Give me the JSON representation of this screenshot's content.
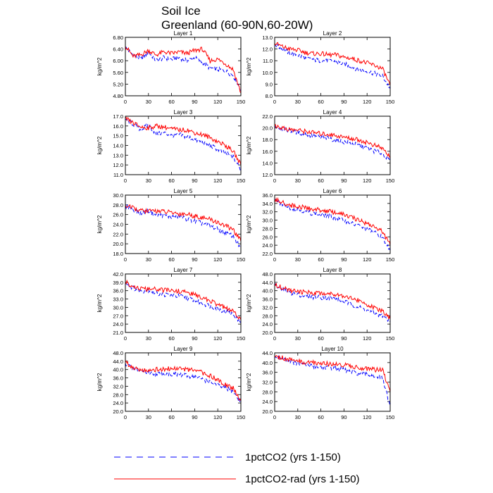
{
  "title": "Soil Ice",
  "subtitle": "Greenland (60-90N,60-20W)",
  "legend": [
    {
      "label": "1pctCO2 (yrs 1-150)",
      "color": "#0000ff",
      "dash": true
    },
    {
      "label": "1pctCO2-rad (yrs 1-150)",
      "color": "#ff0000",
      "dash": false
    }
  ],
  "chart_data": [
    {
      "type": "line",
      "title": "Layer 1",
      "ylabel": "kg/m^2",
      "xlim": [
        0,
        150
      ],
      "ylim": [
        4.8,
        6.8
      ],
      "yticks": [
        "4.80",
        "5.20",
        "5.60",
        "6.00",
        "6.40",
        "6.80"
      ],
      "xticks": [
        "0",
        "30",
        "60",
        "90",
        "120",
        "150"
      ],
      "x": [
        0,
        10,
        20,
        30,
        40,
        50,
        60,
        70,
        80,
        90,
        100,
        110,
        120,
        130,
        140,
        150
      ],
      "series": [
        {
          "name": "1pctCO2 (yrs 1-150)",
          "values": [
            6.45,
            6.2,
            6.05,
            6.3,
            6.0,
            6.1,
            6.05,
            6.1,
            6.0,
            6.1,
            5.95,
            5.75,
            5.7,
            5.65,
            5.5,
            5.0
          ]
        },
        {
          "name": "1pctCO2-rad (yrs 1-150)",
          "values": [
            6.5,
            6.15,
            6.2,
            6.35,
            6.2,
            6.3,
            6.25,
            6.3,
            6.25,
            6.35,
            6.4,
            6.0,
            6.05,
            5.9,
            5.7,
            4.9
          ]
        }
      ]
    },
    {
      "type": "line",
      "title": "Layer 2",
      "ylabel": "kg/m^2",
      "xlim": [
        0,
        150
      ],
      "ylim": [
        8.0,
        13.0
      ],
      "yticks": [
        "8.0",
        "9.0",
        "10.0",
        "11.0",
        "12.0",
        "13.0"
      ],
      "xticks": [
        "0",
        "30",
        "60",
        "90",
        "120",
        "150"
      ],
      "x": [
        0,
        10,
        20,
        30,
        40,
        50,
        60,
        70,
        80,
        90,
        100,
        110,
        120,
        130,
        140,
        150
      ],
      "series": [
        {
          "name": "1pctCO2 (yrs 1-150)",
          "values": [
            12.4,
            12.0,
            11.6,
            11.5,
            11.2,
            11.1,
            11.0,
            11.0,
            10.9,
            10.7,
            10.5,
            10.2,
            10.1,
            9.9,
            9.7,
            8.6
          ]
        },
        {
          "name": "1pctCO2-rad (yrs 1-150)",
          "values": [
            12.5,
            12.2,
            12.0,
            11.9,
            11.7,
            11.6,
            11.6,
            11.5,
            11.5,
            11.3,
            11.2,
            11.0,
            10.8,
            10.6,
            10.3,
            8.9
          ]
        }
      ]
    },
    {
      "type": "line",
      "title": "Layer 3",
      "ylabel": "kg/m^2",
      "xlim": [
        0,
        150
      ],
      "ylim": [
        11.0,
        17.0
      ],
      "yticks": [
        "11.0",
        "12.0",
        "13.0",
        "14.0",
        "15.0",
        "16.0",
        "17.0"
      ],
      "xticks": [
        "0",
        "30",
        "60",
        "90",
        "120",
        "150"
      ],
      "x": [
        0,
        10,
        20,
        30,
        40,
        50,
        60,
        70,
        80,
        90,
        100,
        110,
        120,
        130,
        140,
        150
      ],
      "series": [
        {
          "name": "1pctCO2 (yrs 1-150)",
          "values": [
            16.7,
            16.2,
            15.6,
            16.1,
            15.2,
            15.3,
            15.0,
            15.1,
            14.9,
            14.6,
            14.3,
            14.0,
            13.6,
            13.2,
            12.8,
            11.5
          ]
        },
        {
          "name": "1pctCO2-rad (yrs 1-150)",
          "values": [
            16.8,
            16.3,
            15.9,
            15.8,
            16.0,
            15.9,
            15.7,
            15.6,
            15.6,
            15.3,
            15.1,
            14.8,
            14.4,
            14.0,
            13.4,
            12.0
          ]
        }
      ]
    },
    {
      "type": "line",
      "title": "Layer 4",
      "ylabel": "kg/m^2",
      "xlim": [
        0,
        150
      ],
      "ylim": [
        12.0,
        22.0
      ],
      "yticks": [
        "12.0",
        "14.0",
        "16.0",
        "18.0",
        "20.0",
        "22.0"
      ],
      "xticks": [
        "0",
        "30",
        "60",
        "90",
        "120",
        "150"
      ],
      "x": [
        0,
        10,
        20,
        30,
        40,
        50,
        60,
        70,
        80,
        90,
        100,
        110,
        120,
        130,
        140,
        150
      ],
      "series": [
        {
          "name": "1pctCO2 (yrs 1-150)",
          "values": [
            20.3,
            19.8,
            19.5,
            19.2,
            18.9,
            18.6,
            18.4,
            18.2,
            17.9,
            17.6,
            17.3,
            17.0,
            16.5,
            16.0,
            15.6,
            14.3
          ]
        },
        {
          "name": "1pctCO2-rad (yrs 1-150)",
          "values": [
            20.4,
            20.0,
            19.7,
            19.6,
            19.4,
            19.2,
            19.0,
            18.9,
            18.7,
            18.4,
            18.2,
            17.9,
            17.5,
            17.0,
            16.5,
            15.0
          ]
        }
      ]
    },
    {
      "type": "line",
      "title": "Layer 5",
      "ylabel": "kg/m^2",
      "xlim": [
        0,
        150
      ],
      "ylim": [
        18.0,
        30.0
      ],
      "yticks": [
        "18.0",
        "20.0",
        "22.0",
        "24.0",
        "26.0",
        "28.0",
        "30.0"
      ],
      "xticks": [
        "0",
        "30",
        "60",
        "90",
        "120",
        "150"
      ],
      "x": [
        0,
        10,
        20,
        30,
        40,
        50,
        60,
        70,
        80,
        90,
        100,
        110,
        120,
        130,
        140,
        150
      ],
      "series": [
        {
          "name": "1pctCO2 (yrs 1-150)",
          "values": [
            27.8,
            27.0,
            26.3,
            26.8,
            25.8,
            25.9,
            25.5,
            25.6,
            25.1,
            24.6,
            24.2,
            23.7,
            23.0,
            22.3,
            21.6,
            19.0
          ]
        },
        {
          "name": "1pctCO2-rad (yrs 1-150)",
          "values": [
            27.9,
            27.3,
            26.8,
            26.7,
            26.8,
            26.6,
            26.4,
            26.2,
            26.1,
            25.7,
            25.4,
            25.0,
            24.4,
            23.7,
            22.9,
            20.5
          ]
        }
      ]
    },
    {
      "type": "line",
      "title": "Layer 6",
      "ylabel": "kg/m^2",
      "xlim": [
        0,
        150
      ],
      "ylim": [
        22.0,
        36.0
      ],
      "yticks": [
        "22.0",
        "24.0",
        "26.0",
        "28.0",
        "30.0",
        "32.0",
        "34.0",
        "36.0"
      ],
      "xticks": [
        "0",
        "30",
        "60",
        "90",
        "120",
        "150"
      ],
      "x": [
        0,
        10,
        20,
        30,
        40,
        50,
        60,
        70,
        80,
        90,
        100,
        110,
        120,
        130,
        140,
        150
      ],
      "series": [
        {
          "name": "1pctCO2 (yrs 1-150)",
          "values": [
            34.8,
            33.8,
            33.0,
            32.6,
            32.0,
            31.6,
            31.3,
            31.0,
            30.5,
            30.0,
            29.2,
            28.6,
            27.8,
            27.0,
            25.8,
            22.8
          ]
        },
        {
          "name": "1pctCO2-rad (yrs 1-150)",
          "values": [
            35.0,
            34.2,
            33.6,
            33.2,
            33.0,
            32.6,
            32.4,
            32.1,
            31.8,
            31.3,
            30.6,
            30.0,
            29.2,
            28.4,
            27.2,
            24.0
          ]
        }
      ]
    },
    {
      "type": "line",
      "title": "Layer 7",
      "ylabel": "kg/m^2",
      "xlim": [
        0,
        150
      ],
      "ylim": [
        21.0,
        42.0
      ],
      "yticks": [
        "21.0",
        "24.0",
        "27.0",
        "30.0",
        "33.0",
        "36.0",
        "39.0",
        "42.0"
      ],
      "xticks": [
        "0",
        "30",
        "60",
        "90",
        "120",
        "150"
      ],
      "x": [
        0,
        10,
        20,
        30,
        40,
        50,
        60,
        70,
        80,
        90,
        100,
        110,
        120,
        130,
        140,
        150
      ],
      "series": [
        {
          "name": "1pctCO2 (yrs 1-150)",
          "values": [
            38.8,
            37.0,
            35.8,
            36.2,
            35.0,
            34.6,
            34.3,
            34.0,
            33.5,
            32.5,
            31.5,
            30.5,
            29.5,
            28.5,
            27.5,
            24.5
          ]
        },
        {
          "name": "1pctCO2-rad (yrs 1-150)",
          "values": [
            39.2,
            37.6,
            36.6,
            36.5,
            36.5,
            36.2,
            36.0,
            35.8,
            35.4,
            34.5,
            33.5,
            32.3,
            31.0,
            29.8,
            28.5,
            25.5
          ]
        }
      ]
    },
    {
      "type": "line",
      "title": "Layer 8",
      "ylabel": "kg/m^2",
      "xlim": [
        0,
        150
      ],
      "ylim": [
        20.0,
        48.0
      ],
      "yticks": [
        "20.0",
        "24.0",
        "28.0",
        "32.0",
        "36.0",
        "40.0",
        "44.0",
        "48.0"
      ],
      "xticks": [
        "0",
        "30",
        "60",
        "90",
        "120",
        "150"
      ],
      "x": [
        0,
        10,
        20,
        30,
        40,
        50,
        60,
        70,
        80,
        90,
        100,
        110,
        120,
        130,
        140,
        150
      ],
      "series": [
        {
          "name": "1pctCO2 (yrs 1-150)",
          "values": [
            42.5,
            40.5,
            39.0,
            38.2,
            37.5,
            37.0,
            36.8,
            36.5,
            36.0,
            34.8,
            33.5,
            32.0,
            30.5,
            29.0,
            28.0,
            25.0
          ]
        },
        {
          "name": "1pctCO2-rad (yrs 1-150)",
          "values": [
            43.0,
            41.5,
            40.0,
            39.5,
            39.2,
            39.0,
            38.8,
            38.6,
            38.4,
            37.5,
            36.5,
            35.0,
            33.5,
            31.5,
            30.0,
            26.5
          ]
        }
      ]
    },
    {
      "type": "line",
      "title": "Layer 9",
      "ylabel": "kg/m^2",
      "xlim": [
        0,
        150
      ],
      "ylim": [
        20.0,
        48.0
      ],
      "yticks": [
        "20.0",
        "24.0",
        "28.0",
        "32.0",
        "36.0",
        "40.0",
        "44.0",
        "48.0"
      ],
      "xticks": [
        "0",
        "30",
        "60",
        "90",
        "120",
        "150"
      ],
      "x": [
        0,
        10,
        20,
        30,
        40,
        50,
        60,
        70,
        80,
        90,
        100,
        110,
        120,
        130,
        140,
        150
      ],
      "series": [
        {
          "name": "1pctCO2 (yrs 1-150)",
          "values": [
            43.0,
            40.5,
            39.5,
            38.5,
            38.0,
            38.0,
            37.8,
            37.5,
            37.0,
            36.5,
            35.5,
            34.0,
            32.5,
            31.0,
            29.5,
            24.0
          ]
        },
        {
          "name": "1pctCO2-rad (yrs 1-150)",
          "values": [
            43.5,
            41.0,
            40.0,
            39.8,
            40.0,
            40.2,
            40.5,
            40.5,
            40.0,
            39.5,
            38.5,
            37.0,
            35.0,
            33.0,
            31.0,
            25.0
          ]
        }
      ]
    },
    {
      "type": "line",
      "title": "Layer 10",
      "ylabel": "kg/m^2",
      "xlim": [
        0,
        150
      ],
      "ylim": [
        20.0,
        44.0
      ],
      "yticks": [
        "20.0",
        "24.0",
        "28.0",
        "32.0",
        "36.0",
        "40.0",
        "44.0"
      ],
      "xticks": [
        "0",
        "30",
        "60",
        "90",
        "120",
        "150"
      ],
      "x": [
        0,
        10,
        20,
        30,
        40,
        50,
        60,
        70,
        80,
        90,
        100,
        110,
        120,
        130,
        140,
        150
      ],
      "series": [
        {
          "name": "1pctCO2 (yrs 1-150)",
          "values": [
            42.0,
            41.5,
            40.5,
            39.5,
            39.0,
            38.5,
            38.2,
            38.0,
            37.5,
            37.0,
            36.0,
            35.5,
            35.0,
            34.5,
            33.5,
            22.0
          ]
        },
        {
          "name": "1pctCO2-rad (yrs 1-150)",
          "values": [
            42.5,
            42.0,
            41.0,
            40.5,
            40.0,
            40.0,
            39.8,
            39.5,
            39.5,
            39.0,
            38.5,
            38.0,
            37.5,
            37.0,
            37.0,
            28.0
          ]
        }
      ]
    }
  ]
}
